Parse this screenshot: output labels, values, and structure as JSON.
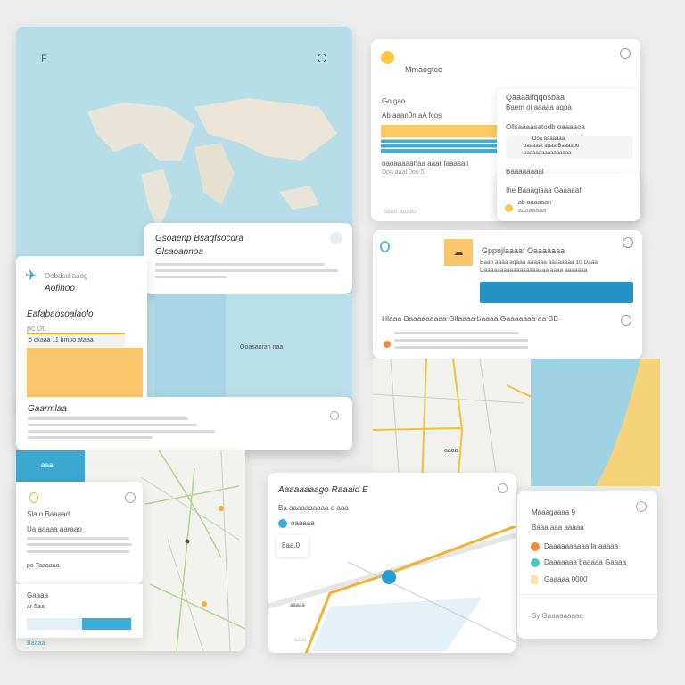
{
  "colors": {
    "map_water": "#b7dde9",
    "accent_blue": "#2ea3cc",
    "accent_yellow": "#fbc965",
    "accent_orange": "#f08a3c",
    "accent_teal": "#4fc3c0",
    "route": "#f2b233"
  },
  "world_card": {
    "corner_label": "F",
    "popup": {
      "title": "Gsoaenp Bsaqfsocdra",
      "subtitle": "Glsaoannoa",
      "map_label": "Ooasanran naa"
    },
    "side": {
      "label": "Oobdsdraaog",
      "value": "Aofihoo",
      "section": "Eafabaosoalaolo",
      "field": "pc 0tt",
      "row": "ö cxaaa 11 bmbo ataaa"
    },
    "footer": {
      "title": "Gaarmlaa"
    }
  },
  "top_right_card": {
    "title": "Mmaogtco",
    "left": {
      "label1": "Go gao",
      "label2": "Ab aaan0n aA fcos",
      "caption": "oaoaaaaahaa aaar faaasali",
      "meta": "Doa aaal   0oo 5t",
      "footer": "oaoo aaaao"
    },
    "inner": {
      "title": "Qaaaalfqqosbaa",
      "subtitle": "Baem oi aaaaa aqpa",
      "label": "Ollsaaaasatodb oaaaaoa",
      "box_title": "Doa aaaaaaa",
      "box_line1": "baaaaat aaaa Baaaaoo",
      "box_line2": "oaaaaaaaaaaaaaaa",
      "section": "Baaaaaaaal"
    },
    "sub": {
      "title": "Ihe Baaagiaaa Gaaaaafi",
      "line1": "ab aaaaaan",
      "line2": "aaaaaaaa"
    }
  },
  "mid_right_card": {
    "title": "Gppnjlaaaaf Oaaaaaaa",
    "line1": "Baao aaaa aqaaa aaaaaa aaaaaaaa 10 Daaa",
    "line2": "Daaaaaaaaaaaaaaaaaaaa aaaa aaaaaaa",
    "row_title": "Hlaaa Baaaaaaaaa Gllaaaa baaaa Gaaaaaaa aa BB"
  },
  "road_map": {
    "label": "aaaa"
  },
  "left_bottom": {
    "tab": "aaa",
    "title": "Sla o Baaaad",
    "item": "Ua aaaaa aaraao",
    "link": "po Taaaaaa",
    "section": "Gaaaa",
    "field": "ar 5aa",
    "footer": "Baaaa"
  },
  "route_card": {
    "title": "Aaaaaaaago Raaaid E",
    "subtitle": "Ba aaaaaaaaaa a aaa",
    "point": "oaaaaa",
    "distance": "8aa.0",
    "map_label": "aaaaa",
    "footer": "aaaa"
  },
  "legend_card": {
    "title": "Maaagaaaa 9",
    "subtitle": "Baaa aaa aaaaa",
    "items": [
      "Daaaaaaaaaa la aaaaa",
      "Daaaaaaa baaaaa Gaaaa",
      "Gaaaaa 0000"
    ],
    "footer": "Sy Gaaaaaaaaa"
  }
}
